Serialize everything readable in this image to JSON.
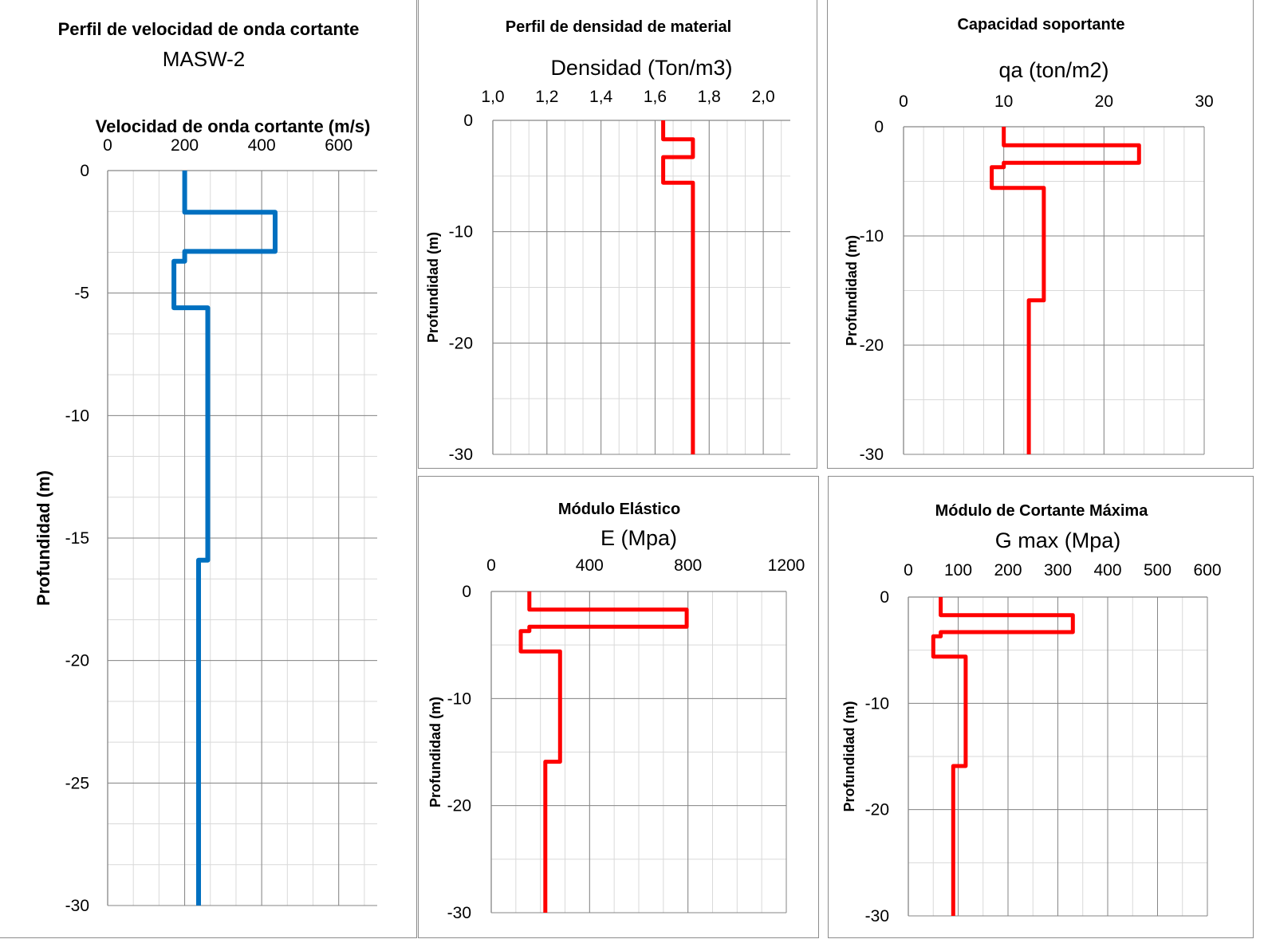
{
  "chart_data": [
    {
      "type": "line",
      "title": "Perfil de velocidad de onda cortante",
      "subtitle": "MASW-2",
      "xlabel": "Velocidad de onda cortante (m/s)",
      "ylabel": "Profundidad (m)",
      "xlim": [
        0,
        700
      ],
      "ylim": [
        -30,
        0
      ],
      "x_ticks": [
        "0",
        "200",
        "400",
        "600"
      ],
      "y_ticks": [
        "0",
        "-5",
        "-10",
        "-15",
        "-20",
        "-25",
        "-30"
      ],
      "grid": true,
      "color": "#0070c0",
      "series": [
        {
          "x": [
            200,
            200,
            435,
            435,
            200,
            200,
            172,
            172,
            260,
            260,
            236,
            236
          ],
          "y": [
            0,
            -1.7,
            -1.7,
            -3.3,
            -3.3,
            -3.7,
            -3.7,
            -5.6,
            -5.6,
            -15.9,
            -15.9,
            -30
          ]
        }
      ]
    },
    {
      "type": "line",
      "title": "Perfil de densidad de material",
      "xlabel": "Densidad (Ton/m3)",
      "ylabel": "Profundidad (m)",
      "xlim": [
        1.0,
        2.1
      ],
      "ylim": [
        -30,
        0
      ],
      "x_ticks": [
        "1,0",
        "1,2",
        "1,4",
        "1,6",
        "1,8",
        "2,0"
      ],
      "y_ticks": [
        "0",
        "-10",
        "-20",
        "-30"
      ],
      "grid": true,
      "color": "#ff0000",
      "series": [
        {
          "x": [
            1.63,
            1.63,
            1.74,
            1.74,
            1.63,
            1.63,
            1.74,
            1.74
          ],
          "y": [
            0,
            -1.7,
            -1.7,
            -3.3,
            -3.3,
            -5.6,
            -5.6,
            -30
          ]
        }
      ]
    },
    {
      "type": "line",
      "title": "Capacidad soportante",
      "xlabel": "qa (ton/m2)",
      "ylabel": "Profundidad (m)",
      "xlim": [
        0,
        30
      ],
      "ylim": [
        -30,
        0
      ],
      "x_ticks": [
        "0",
        "10",
        "20",
        "30"
      ],
      "y_ticks": [
        "0",
        "-10",
        "-20",
        "-30"
      ],
      "grid": true,
      "color": "#ff0000",
      "series": [
        {
          "x": [
            10,
            10,
            23.5,
            23.5,
            10,
            10,
            8.8,
            8.8,
            14,
            14,
            12.5,
            12.5
          ],
          "y": [
            0,
            -1.7,
            -1.7,
            -3.3,
            -3.3,
            -3.7,
            -3.7,
            -5.6,
            -5.6,
            -15.9,
            -15.9,
            -30
          ]
        }
      ]
    },
    {
      "type": "line",
      "title": "Módulo Elástico",
      "xlabel": "E (Mpa)",
      "ylabel": "Profundidad (m)",
      "xlim": [
        0,
        1200
      ],
      "ylim": [
        -30,
        0
      ],
      "x_ticks": [
        "0",
        "400",
        "800",
        "1200"
      ],
      "y_ticks": [
        "0",
        "-10",
        "-20",
        "-30"
      ],
      "grid": true,
      "color": "#ff0000",
      "series": [
        {
          "x": [
            155,
            155,
            795,
            795,
            155,
            155,
            120,
            120,
            280,
            280,
            220,
            220
          ],
          "y": [
            0,
            -1.7,
            -1.7,
            -3.3,
            -3.3,
            -3.7,
            -3.7,
            -5.6,
            -5.6,
            -15.9,
            -15.9,
            -30
          ]
        }
      ]
    },
    {
      "type": "line",
      "title": "Módulo de Cortante Máxima",
      "xlabel": "G max (Mpa)",
      "ylabel": "Profundidad (m)",
      "xlim": [
        0,
        600
      ],
      "ylim": [
        -30,
        0
      ],
      "x_ticks": [
        "0",
        "100",
        "200",
        "300",
        "400",
        "500",
        "600"
      ],
      "y_ticks": [
        "0",
        "-10",
        "-20",
        "-30"
      ],
      "grid": true,
      "color": "#ff0000",
      "series": [
        {
          "x": [
            65,
            65,
            330,
            330,
            65,
            65,
            50,
            50,
            115,
            115,
            90,
            90
          ],
          "y": [
            0,
            -1.7,
            -1.7,
            -3.3,
            -3.3,
            -3.7,
            -3.7,
            -5.6,
            -5.6,
            -15.9,
            -15.9,
            -30
          ]
        }
      ]
    }
  ]
}
